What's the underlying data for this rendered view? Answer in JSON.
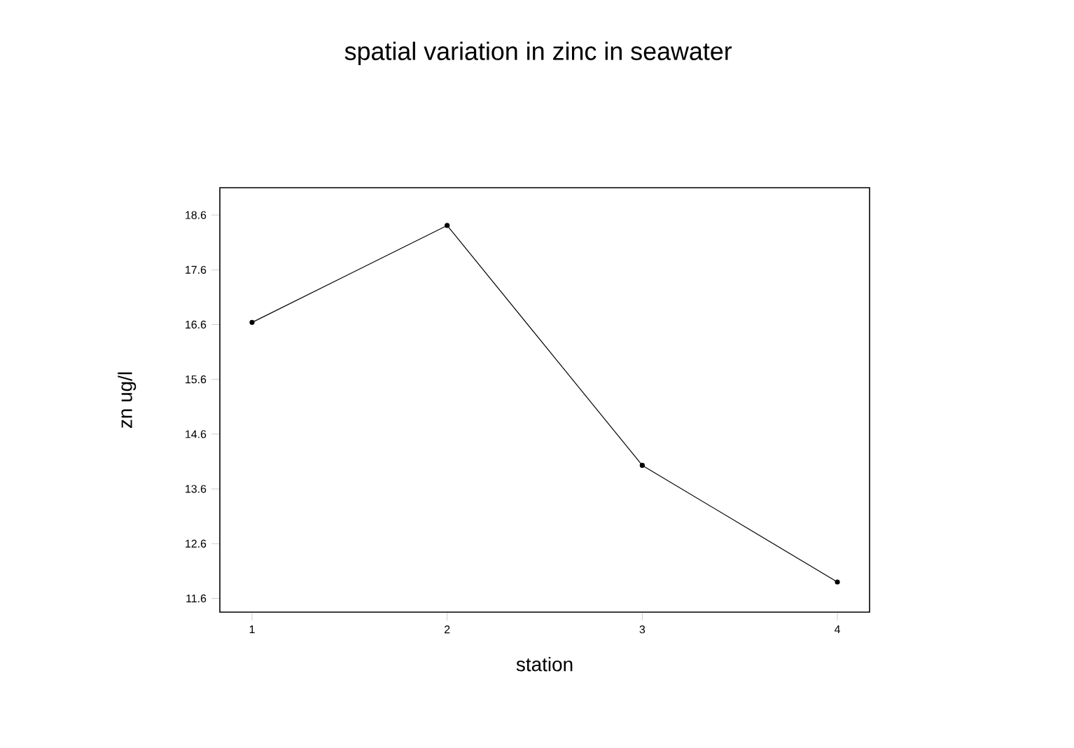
{
  "chart_data": {
    "type": "line",
    "title": "spatial variation in zinc in seawater",
    "xlabel": "station",
    "ylabel": "zn ug/l",
    "x": [
      1,
      2,
      3,
      4
    ],
    "series": [
      {
        "color": "#000000",
        "values": [
          16.64,
          18.41,
          14.03,
          11.9
        ]
      }
    ],
    "xlim": [
      0.835,
      4.165
    ],
    "xticks": [
      1,
      2,
      3,
      4
    ],
    "ylim": [
      11.35,
      19.1
    ],
    "yticks": [
      11.6,
      12.6,
      13.6,
      14.6,
      15.6,
      16.6,
      17.6,
      18.6
    ],
    "marker": "circle",
    "line_style": "solid"
  }
}
